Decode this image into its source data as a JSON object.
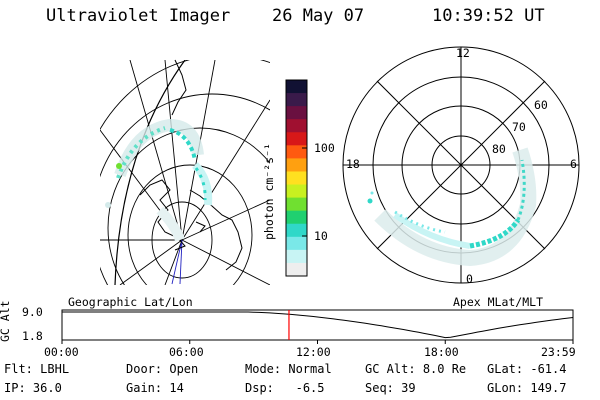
{
  "header": {
    "instrument": "Ultraviolet Imager",
    "date": "26 May 07",
    "time": "10:39:52 UT"
  },
  "colorbar": {
    "unit_label": "photon cm⁻²s⁻¹",
    "ticks": [
      "100",
      "10"
    ],
    "colors": [
      "#111133",
      "#3a1a4a",
      "#6a1040",
      "#a01030",
      "#d81818",
      "#ff5a10",
      "#ffa010",
      "#ffe020",
      "#c8f020",
      "#70e030",
      "#20d070",
      "#30d8c8",
      "#7ae8e8",
      "#c8f4f4",
      "#eeeeee"
    ]
  },
  "left_map": {
    "caption": "Geographic Lat/Lon"
  },
  "right_map": {
    "caption": "Apex MLat/MLT",
    "mlt_labels": {
      "top": "12",
      "left": "18",
      "right": "6",
      "bottom": "0"
    },
    "lat_labels": [
      "60",
      "70",
      "80"
    ]
  },
  "altitude_plot": {
    "ylabel": "GC Alt",
    "yticks": [
      "9.0",
      "1.8"
    ],
    "xticks": [
      "00:00",
      "06:00",
      "12:00",
      "18:00",
      "23:59"
    ],
    "current_time_hour": 10.66,
    "marker_color": "#ff0000"
  },
  "info_rows": [
    [
      {
        "label": "Flt:",
        "value": "LBHL"
      },
      {
        "label": "Door:",
        "value": "Open"
      },
      {
        "label": "Mode:",
        "value": "Normal"
      },
      {
        "label": "GC Alt:",
        "value": "8.0 Re"
      },
      {
        "label": "GLat:",
        "value": "-61.4"
      }
    ],
    [
      {
        "label": "IP:",
        "value": "36.0"
      },
      {
        "label": "Gain:",
        "value": "14"
      },
      {
        "label": "Dsp:",
        "value": "  -6.5"
      },
      {
        "label": "Seq:",
        "value": "39"
      },
      {
        "label": "GLon:",
        "value": "149.7"
      }
    ]
  ]
}
